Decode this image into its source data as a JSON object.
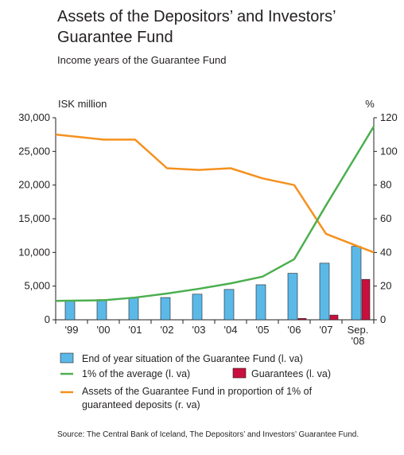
{
  "header": {
    "title": "Assets of the Depositors’ and Investors’ Guarantee Fund",
    "subtitle": "Income years of the Guarantee Fund"
  },
  "source": "Source: The Central Bank of Iceland, The Depositors’ and Investors’ Guarantee Fund.",
  "colors": {
    "bars": "#5bb9e8",
    "guarantees": "#c8103e",
    "green_line": "#4caf50",
    "orange_line": "#f5911e"
  },
  "chart_data": {
    "type": "bar",
    "categories": [
      "'99",
      "'00",
      "'01",
      "'02",
      "'03",
      "'04",
      "'05",
      "'06",
      "'07",
      "Sep. '08"
    ],
    "category_labels": [
      [
        "'99"
      ],
      [
        "'00"
      ],
      [
        "'01"
      ],
      [
        "'02"
      ],
      [
        "'03"
      ],
      [
        "'04"
      ],
      [
        "'05"
      ],
      [
        "'06"
      ],
      [
        "'07"
      ],
      [
        "Sep.",
        "'08"
      ]
    ],
    "left_axis": {
      "label": "ISK million",
      "ylim": [
        0,
        30000
      ],
      "ticks": [
        "0",
        "5,000",
        "10,000",
        "15,000",
        "20,000",
        "25,000",
        "30,000"
      ]
    },
    "right_axis": {
      "label": "%",
      "ylim": [
        0,
        120
      ],
      "ticks": [
        "0",
        "20",
        "40",
        "60",
        "80",
        "100",
        "120"
      ]
    },
    "series": [
      {
        "name": "End of year situation of the Guarantee Fund (l. va)",
        "kind": "bar",
        "axis": "left",
        "values": [
          2900,
          3000,
          3300,
          3300,
          3800,
          4500,
          5200,
          6900,
          8400,
          10900
        ]
      },
      {
        "name": "Guarantees (l. va)",
        "kind": "bar",
        "axis": "left",
        "values": [
          0,
          0,
          0,
          0,
          0,
          0,
          0,
          200,
          700,
          6000
        ]
      },
      {
        "name": "1% of the average (l. va)",
        "kind": "line",
        "axis": "left",
        "values": [
          2800,
          2900,
          3300,
          3900,
          4600,
          5400,
          6400,
          9000,
          17000,
          28700
        ]
      },
      {
        "name": "Assets of the Guarantee Fund in proportion of 1% of guaranteed deposits (r. va)",
        "kind": "line",
        "axis": "right",
        "values": [
          110,
          107,
          107,
          90,
          89,
          90,
          84,
          80,
          51,
          40
        ]
      }
    ],
    "legend": [
      "End of year situation of the Guarantee Fund (l. va)",
      "1% of the average (l. va)",
      "Guarantees (l. va)",
      "Assets of the Guarantee Fund in proportion of 1% of",
      "guaranteed deposits (r. va)"
    ],
    "grid": false,
    "legend_position": "bottom"
  }
}
